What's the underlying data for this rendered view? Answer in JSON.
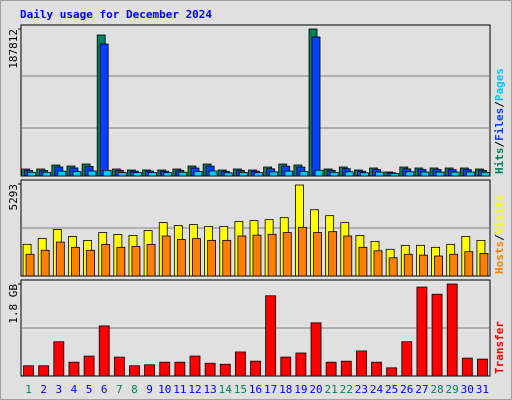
{
  "chart_data": {
    "type": "bar",
    "title": "Daily usage for December 2024",
    "categories": [
      "1",
      "2",
      "3",
      "4",
      "5",
      "6",
      "7",
      "8",
      "9",
      "10",
      "11",
      "12",
      "13",
      "14",
      "15",
      "16",
      "17",
      "18",
      "19",
      "20",
      "21",
      "22",
      "23",
      "24",
      "25",
      "26",
      "27",
      "28",
      "29",
      "30",
      "31"
    ],
    "category_colors": [
      "#00805c",
      "#0000ff",
      "#0000ff",
      "#0000ff",
      "#0000ff",
      "#0000ff",
      "#00805c",
      "#00805c",
      "#0000ff",
      "#0000ff",
      "#0000ff",
      "#0000ff",
      "#0000ff",
      "#00805c",
      "#00805c",
      "#0000ff",
      "#0000ff",
      "#0000ff",
      "#0000ff",
      "#0000ff",
      "#00805c",
      "#00805c",
      "#0000ff",
      "#0000ff",
      "#0000ff",
      "#0000ff",
      "#0000ff",
      "#00805c",
      "#00805c",
      "#0000ff",
      "#0000ff"
    ],
    "legend_separator": "/",
    "panels": [
      {
        "ylim": [
          0,
          187812
        ],
        "yticks": [
          187812
        ],
        "series": [
          {
            "name": "Hits",
            "color": "#00805c",
            "values": [
              8943,
              8943,
              14054,
              12776,
              15331,
              180146,
              8943,
              7666,
              7666,
              7666,
              8943,
              12776,
              15331,
              7666,
              8943,
              7666,
              11498,
              15331,
              14054,
              187812,
              8943,
              11498,
              7666,
              10221,
              5110,
              11498,
              10221,
              10221,
              10221,
              10221,
              8943
            ]
          },
          {
            "name": "Files",
            "color": "#0040ff",
            "values": [
              7200,
              7100,
              11500,
              10300,
              12300,
              168650,
              7000,
              6200,
              6300,
              6100,
              7200,
              10200,
              12600,
              6000,
              7100,
              6200,
              9200,
              12500,
              11400,
              177590,
              7300,
              9300,
              6100,
              8300,
              4100,
              9100,
              8200,
              8300,
              8200,
              8200,
              7200
            ]
          },
          {
            "name": "Pages",
            "color": "#00c8ff",
            "values": [
              4800,
              4700,
              6200,
              5600,
              6400,
              7100,
              4500,
              4300,
              4400,
              4200,
              4800,
              5900,
              6500,
              4100,
              4600,
              4300,
              5300,
              6300,
              5800,
              7400,
              4700,
              5400,
              4200,
              5000,
              3200,
              5400,
              5100,
              5000,
              5000,
              5100,
              4700
            ]
          }
        ]
      },
      {
        "ylim": [
          0,
          5293
        ],
        "yticks": [
          5293
        ],
        "series": [
          {
            "name": "Visits",
            "color": "#ffff00",
            "values": [
              1821,
              2162,
              2675,
              2276,
              2048,
              2504,
              2390,
              2333,
              2618,
              3073,
              2902,
              2959,
              2845,
              2845,
              3130,
              3187,
              3243,
              3357,
              5235,
              3812,
              3471,
              3073,
              2333,
              1992,
              1536,
              1764,
              1764,
              1650,
              1821,
              2276,
              2048
            ]
          },
          {
            "name": "Hosts",
            "color": "#ff8000",
            "values": [
              1250,
              1480,
              1950,
              1650,
              1480,
              1820,
              1650,
              1700,
              1820,
              2300,
              2100,
              2150,
              2050,
              2050,
              2300,
              2350,
              2400,
              2500,
              2800,
              2500,
              2550,
              2300,
              1650,
              1450,
              1050,
              1250,
              1200,
              1150,
              1250,
              1400,
              1300
            ]
          }
        ]
      },
      {
        "ylim": [
          0,
          1.8
        ],
        "yticks": [
          {
            "value": 1.8,
            "label": "1.8 GB"
          }
        ],
        "series": [
          {
            "name": "Transfer",
            "color": "#ff0000",
            "values": [
              0.2,
              0.2,
              0.67,
              0.27,
              0.39,
              0.98,
              0.37,
              0.2,
              0.22,
              0.27,
              0.27,
              0.39,
              0.25,
              0.23,
              0.47,
              0.29,
              1.57,
              0.37,
              0.45,
              1.04,
              0.27,
              0.29,
              0.49,
              0.27,
              0.16,
              0.67,
              1.74,
              1.6,
              1.8,
              0.35,
              0.33
            ]
          }
        ]
      }
    ]
  }
}
